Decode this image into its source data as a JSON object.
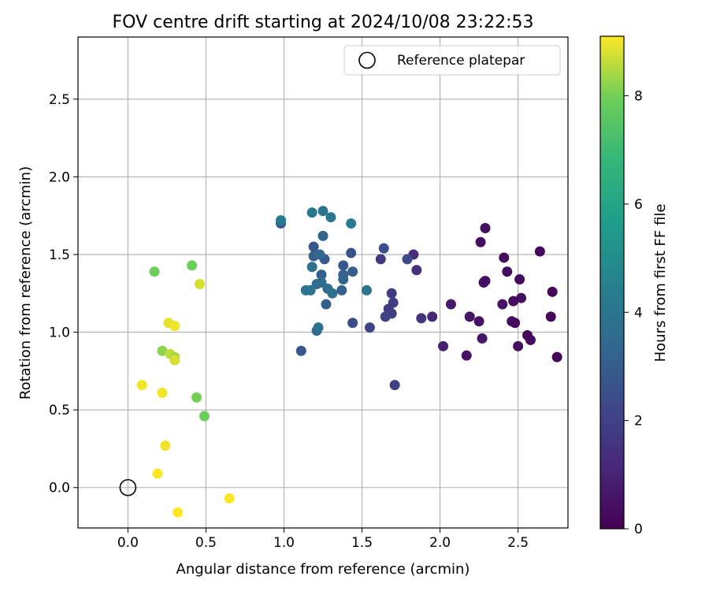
{
  "chart_data": {
    "type": "scatter",
    "title": "FOV centre drift starting at 2024/10/08 23:22:53",
    "xlabel": "Angular distance from reference (arcmin)",
    "ylabel": "Rotation from reference (arcmin)",
    "xlim": [
      -0.32,
      2.82
    ],
    "ylim": [
      -0.26,
      2.9
    ],
    "xticks": [
      0.0,
      0.5,
      1.0,
      1.5,
      2.0,
      2.5
    ],
    "yticks": [
      0.0,
      0.5,
      1.0,
      1.5,
      2.0,
      2.5
    ],
    "xtick_labels": [
      "0.0",
      "0.5",
      "1.0",
      "1.5",
      "2.0",
      "2.5"
    ],
    "ytick_labels": [
      "0.0",
      "0.5",
      "1.0",
      "1.5",
      "2.0",
      "2.5"
    ],
    "grid": true,
    "legend": {
      "label": "Reference platepar",
      "placement": "top-right",
      "marker": "open-circle"
    },
    "reference_point": {
      "x": 0.0,
      "y": 0.0
    },
    "colorbar": {
      "label": "Hours from first FF file",
      "colormap": "viridis",
      "range": [
        0,
        9.1
      ],
      "ticks": [
        0,
        2,
        4,
        6,
        8
      ],
      "tick_labels": [
        "0",
        "2",
        "4",
        "6",
        "8"
      ]
    },
    "point_fields": [
      "x",
      "y",
      "hours"
    ],
    "points": [
      [
        2.29,
        1.67,
        0.3
      ],
      [
        2.26,
        1.58,
        0.4
      ],
      [
        2.64,
        1.52,
        0.2
      ],
      [
        2.41,
        1.48,
        0.3
      ],
      [
        2.43,
        1.39,
        0.4
      ],
      [
        2.51,
        1.34,
        0.3
      ],
      [
        2.29,
        1.33,
        0.5
      ],
      [
        2.28,
        1.32,
        0.4
      ],
      [
        2.72,
        1.26,
        0.2
      ],
      [
        2.52,
        1.22,
        0.4
      ],
      [
        2.47,
        1.2,
        0.3
      ],
      [
        2.4,
        1.18,
        0.5
      ],
      [
        2.07,
        1.18,
        0.7
      ],
      [
        2.19,
        1.1,
        0.6
      ],
      [
        2.71,
        1.1,
        0.2
      ],
      [
        2.46,
        1.07,
        0.4
      ],
      [
        2.48,
        1.06,
        0.3
      ],
      [
        2.25,
        1.07,
        0.5
      ],
      [
        2.56,
        0.98,
        0.2
      ],
      [
        2.27,
        0.96,
        0.6
      ],
      [
        2.58,
        0.95,
        0.3
      ],
      [
        2.02,
        0.91,
        0.9
      ],
      [
        2.5,
        0.91,
        0.4
      ],
      [
        2.17,
        0.85,
        0.5
      ],
      [
        2.75,
        0.84,
        0.1
      ],
      [
        1.95,
        1.1,
        1.1
      ],
      [
        1.83,
        1.5,
        1.3
      ],
      [
        1.85,
        1.4,
        1.4
      ],
      [
        1.88,
        1.09,
        1.6
      ],
      [
        1.62,
        1.47,
        1.7
      ],
      [
        1.69,
        1.25,
        1.8
      ],
      [
        1.7,
        1.19,
        1.9
      ],
      [
        1.67,
        1.15,
        1.8
      ],
      [
        1.65,
        1.1,
        2.0
      ],
      [
        1.69,
        1.12,
        1.9
      ],
      [
        1.71,
        0.66,
        2.0
      ],
      [
        1.55,
        1.03,
        2.1
      ],
      [
        1.64,
        1.54,
        2.4
      ],
      [
        1.79,
        1.47,
        2.3
      ],
      [
        1.44,
        1.06,
        2.4
      ],
      [
        1.43,
        1.51,
        2.6
      ],
      [
        1.38,
        1.43,
        2.8
      ],
      [
        1.44,
        1.39,
        3.0
      ],
      [
        1.38,
        1.37,
        3.1
      ],
      [
        1.38,
        1.34,
        3.3
      ],
      [
        1.37,
        1.27,
        3.2
      ],
      [
        1.11,
        0.88,
        2.7
      ],
      [
        0.98,
        1.7,
        2.9
      ],
      [
        1.19,
        1.55,
        2.8
      ],
      [
        1.19,
        1.49,
        3.0
      ],
      [
        1.26,
        1.47,
        2.9
      ],
      [
        1.24,
        1.37,
        3.0
      ],
      [
        1.27,
        1.18,
        3.1
      ],
      [
        1.25,
        1.62,
        3.3
      ],
      [
        1.23,
        1.5,
        3.4
      ],
      [
        1.21,
        1.31,
        3.5
      ],
      [
        1.24,
        1.32,
        3.6
      ],
      [
        1.28,
        1.28,
        3.6
      ],
      [
        1.31,
        1.25,
        3.7
      ],
      [
        1.21,
        1.01,
        3.6
      ],
      [
        1.22,
        1.03,
        3.8
      ],
      [
        1.17,
        1.27,
        3.9
      ],
      [
        1.14,
        1.27,
        4.0
      ],
      [
        1.18,
        1.42,
        3.8
      ],
      [
        1.3,
        1.74,
        4.0
      ],
      [
        1.25,
        1.78,
        4.0
      ],
      [
        1.18,
        1.77,
        4.1
      ],
      [
        0.98,
        1.72,
        4.2
      ],
      [
        1.43,
        1.7,
        4.2
      ],
      [
        1.53,
        1.27,
        3.9
      ],
      [
        0.17,
        1.39,
        7.9
      ],
      [
        0.41,
        1.43,
        7.9
      ],
      [
        0.46,
        1.31,
        8.8
      ],
      [
        0.22,
        0.88,
        8.2
      ],
      [
        0.27,
        0.86,
        8.6
      ],
      [
        0.3,
        0.84,
        8.4
      ],
      [
        0.3,
        0.82,
        8.8
      ],
      [
        0.26,
        1.06,
        8.9
      ],
      [
        0.3,
        1.04,
        9.0
      ],
      [
        0.09,
        0.66,
        9.0
      ],
      [
        0.22,
        0.61,
        9.0
      ],
      [
        0.44,
        0.58,
        8.0
      ],
      [
        0.49,
        0.46,
        7.9
      ],
      [
        0.24,
        0.27,
        9.0
      ],
      [
        0.19,
        0.09,
        9.1
      ],
      [
        0.32,
        -0.16,
        9.1
      ],
      [
        0.65,
        -0.07,
        9.1
      ]
    ]
  }
}
